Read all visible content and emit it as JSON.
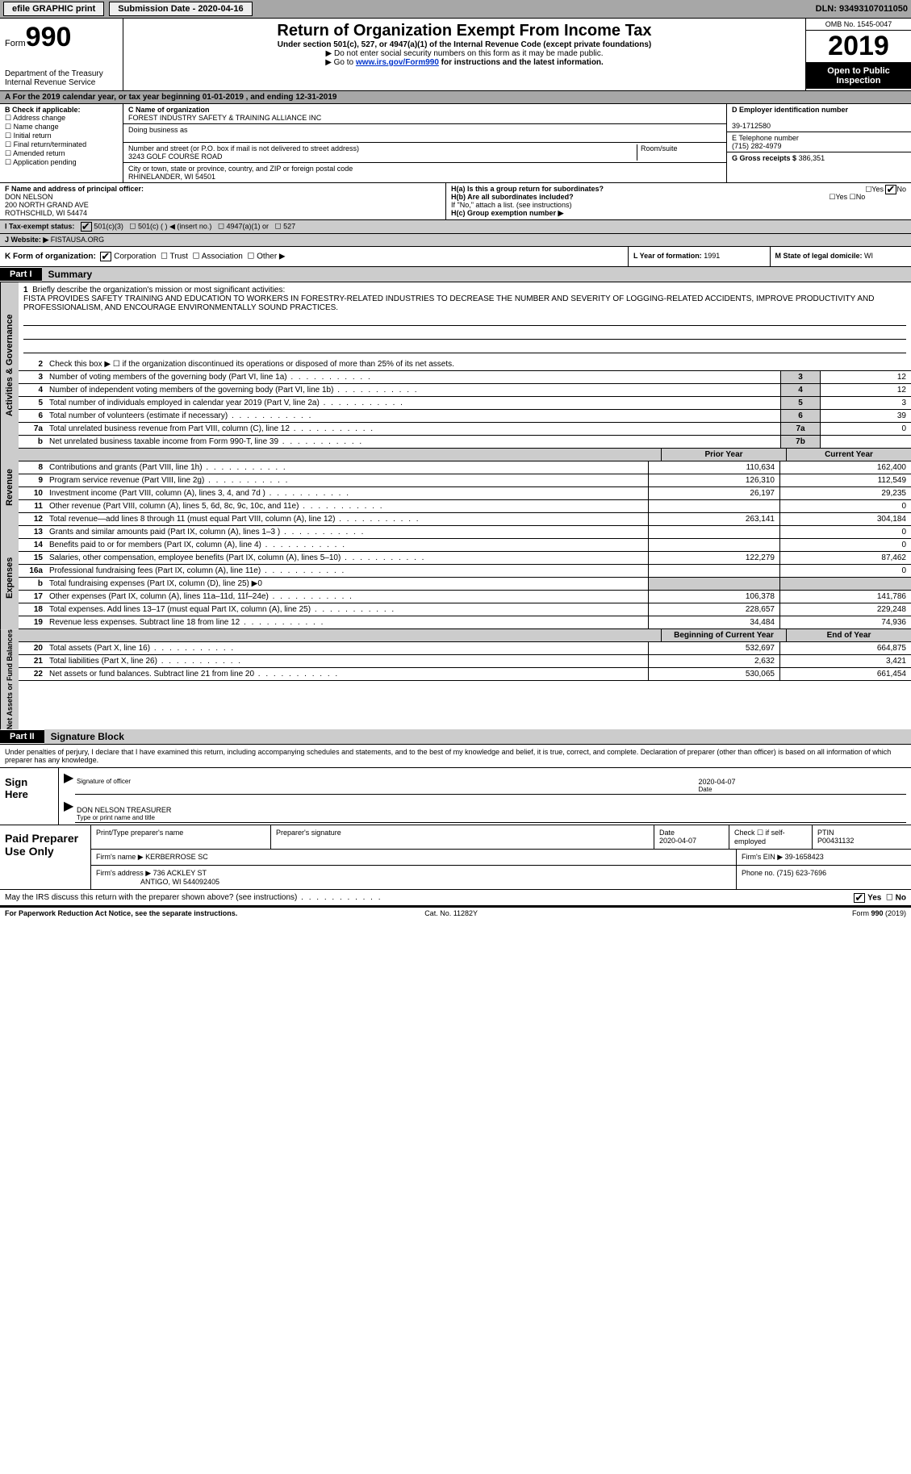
{
  "top": {
    "efile": "efile GRAPHIC print",
    "sub_label": "Submission Date - 2020-04-16",
    "dln": "DLN: 93493107011050"
  },
  "header": {
    "form_word": "Form",
    "form_num": "990",
    "title": "Return of Organization Exempt From Income Tax",
    "subtitle": "Under section 501(c), 527, or 4947(a)(1) of the Internal Revenue Code (except private foundations)",
    "instr1": "▶ Do not enter social security numbers on this form as it may be made public.",
    "instr2_pre": "▶ Go to ",
    "instr2_link": "www.irs.gov/Form990",
    "instr2_post": " for instructions and the latest information.",
    "omb": "OMB No. 1545-0047",
    "year": "2019",
    "open": "Open to Public Inspection",
    "dept": "Department of the Treasury\nInternal Revenue Service"
  },
  "a_line": "A For the 2019 calendar year, or tax year beginning 01-01-2019    , and ending 12-31-2019",
  "b": {
    "hd": "B Check if applicable:",
    "opts": [
      "Address change",
      "Name change",
      "Initial return",
      "Final return/terminated",
      "Amended return",
      "Application pending"
    ]
  },
  "c": {
    "label": "C Name of organization",
    "name": "FOREST INDUSTRY SAFETY & TRAINING ALLIANCE INC",
    "dba_label": "Doing business as",
    "addr_label": "Number and street (or P.O. box if mail is not delivered to street address)",
    "room_label": "Room/suite",
    "addr": "3243 GOLF COURSE ROAD",
    "city_label": "City or town, state or province, country, and ZIP or foreign postal code",
    "city": "RHINELANDER, WI  54501"
  },
  "d": {
    "label": "D Employer identification number",
    "val": "39-1712580"
  },
  "e": {
    "label": "E Telephone number",
    "val": "(715) 282-4979"
  },
  "g": {
    "label": "G Gross receipts $",
    "val": "386,351"
  },
  "f": {
    "label": "F  Name and address of principal officer:",
    "name": "DON NELSON",
    "l1": "200 NORTH GRAND AVE",
    "l2": "ROTHSCHILD, WI  54474"
  },
  "h": {
    "a": "H(a)  Is this a group return for subordinates?",
    "b": "H(b)  Are all subordinates included?",
    "b2": "If \"No,\" attach a list. (see instructions)",
    "c": "H(c)  Group exemption number ▶"
  },
  "i": {
    "label": "I   Tax-exempt status:",
    "o1": "501(c)(3)",
    "o2": "501(c) (  ) ◀ (insert no.)",
    "o3": "4947(a)(1) or",
    "o4": "527"
  },
  "j": {
    "label": "J   Website: ▶",
    "val": "FISTAUSA.ORG"
  },
  "k": {
    "label": "K Form of organization:",
    "o1": "Corporation",
    "o2": "Trust",
    "o3": "Association",
    "o4": "Other ▶"
  },
  "l": {
    "label": "L Year of formation:",
    "val": "1991"
  },
  "m": {
    "label": "M State of legal domicile:",
    "val": "WI"
  },
  "part1": {
    "hd": "Part I",
    "title": "Summary"
  },
  "tabs": {
    "ag": "Activities & Governance",
    "rev": "Revenue",
    "exp": "Expenses",
    "na": "Net Assets or Fund Balances"
  },
  "l1": {
    "n": "1",
    "t": "Briefly describe the organization's mission or most significant activities:",
    "desc": "FISTA PROVIDES SAFETY TRAINING AND EDUCATION TO WORKERS IN FORESTRY-RELATED INDUSTRIES TO DECREASE THE NUMBER AND SEVERITY OF LOGGING-RELATED ACCIDENTS, IMPROVE PRODUCTIVITY AND PROFESSIONALISM, AND ENCOURAGE ENVIRONMENTALLY SOUND PRACTICES."
  },
  "l2": {
    "n": "2",
    "t": "Check this box ▶ ☐  if the organization discontinued its operations or disposed of more than 25% of its net assets."
  },
  "lines_ag": [
    {
      "n": "3",
      "t": "Number of voting members of the governing body (Part VI, line 1a)",
      "c": "3",
      "v": "12"
    },
    {
      "n": "4",
      "t": "Number of independent voting members of the governing body (Part VI, line 1b)",
      "c": "4",
      "v": "12"
    },
    {
      "n": "5",
      "t": "Total number of individuals employed in calendar year 2019 (Part V, line 2a)",
      "c": "5",
      "v": "3"
    },
    {
      "n": "6",
      "t": "Total number of volunteers (estimate if necessary)",
      "c": "6",
      "v": "39"
    },
    {
      "n": "7a",
      "t": "Total unrelated business revenue from Part VIII, column (C), line 12",
      "c": "7a",
      "v": "0"
    },
    {
      "n": "b",
      "t": "Net unrelated business taxable income from Form 990-T, line 39",
      "c": "7b",
      "v": ""
    }
  ],
  "rev_hd": {
    "py": "Prior Year",
    "cy": "Current Year"
  },
  "lines_rev": [
    {
      "n": "8",
      "t": "Contributions and grants (Part VIII, line 1h)",
      "py": "110,634",
      "cy": "162,400"
    },
    {
      "n": "9",
      "t": "Program service revenue (Part VIII, line 2g)",
      "py": "126,310",
      "cy": "112,549"
    },
    {
      "n": "10",
      "t": "Investment income (Part VIII, column (A), lines 3, 4, and 7d )",
      "py": "26,197",
      "cy": "29,235"
    },
    {
      "n": "11",
      "t": "Other revenue (Part VIII, column (A), lines 5, 6d, 8c, 9c, 10c, and 11e)",
      "py": "",
      "cy": "0"
    },
    {
      "n": "12",
      "t": "Total revenue—add lines 8 through 11 (must equal Part VIII, column (A), line 12)",
      "py": "263,141",
      "cy": "304,184"
    }
  ],
  "lines_exp": [
    {
      "n": "13",
      "t": "Grants and similar amounts paid (Part IX, column (A), lines 1–3 )",
      "py": "",
      "cy": "0"
    },
    {
      "n": "14",
      "t": "Benefits paid to or for members (Part IX, column (A), line 4)",
      "py": "",
      "cy": "0"
    },
    {
      "n": "15",
      "t": "Salaries, other compensation, employee benefits (Part IX, column (A), lines 5–10)",
      "py": "122,279",
      "cy": "87,462"
    },
    {
      "n": "16a",
      "t": "Professional fundraising fees (Part IX, column (A), line 11e)",
      "py": "",
      "cy": "0"
    },
    {
      "n": "b",
      "t": "Total fundraising expenses (Part IX, column (D), line 25) ▶0",
      "py": "grey",
      "cy": "grey"
    },
    {
      "n": "17",
      "t": "Other expenses (Part IX, column (A), lines 11a–11d, 11f–24e)",
      "py": "106,378",
      "cy": "141,786"
    },
    {
      "n": "18",
      "t": "Total expenses. Add lines 13–17 (must equal Part IX, column (A), line 25)",
      "py": "228,657",
      "cy": "229,248"
    },
    {
      "n": "19",
      "t": "Revenue less expenses. Subtract line 18 from line 12",
      "py": "34,484",
      "cy": "74,936"
    }
  ],
  "na_hd": {
    "py": "Beginning of Current Year",
    "cy": "End of Year"
  },
  "lines_na": [
    {
      "n": "20",
      "t": "Total assets (Part X, line 16)",
      "py": "532,697",
      "cy": "664,875"
    },
    {
      "n": "21",
      "t": "Total liabilities (Part X, line 26)",
      "py": "2,632",
      "cy": "3,421"
    },
    {
      "n": "22",
      "t": "Net assets or fund balances. Subtract line 21 from line 20",
      "py": "530,065",
      "cy": "661,454"
    }
  ],
  "part2": {
    "hd": "Part II",
    "title": "Signature Block"
  },
  "sig_text": "Under penalties of perjury, I declare that I have examined this return, including accompanying schedules and statements, and to the best of my knowledge and belief, it is true, correct, and complete. Declaration of preparer (other than officer) is based on all information of which preparer has any knowledge.",
  "sign": {
    "here": "Sign Here",
    "sig_label": "Signature of officer",
    "date_label": "Date",
    "date": "2020-04-07",
    "name": "DON NELSON  TREASURER",
    "name_label": "Type or print name and title"
  },
  "paid": {
    "hd": "Paid Preparer Use Only",
    "c1": "Print/Type preparer's name",
    "c2": "Preparer's signature",
    "c3": "Date",
    "c3v": "2020-04-07",
    "c4": "Check ☐ if self-employed",
    "c5": "PTIN",
    "c5v": "P00431132",
    "firm_l": "Firm's name    ▶",
    "firm": "KERBERROSE SC",
    "ein_l": "Firm's EIN ▶",
    "ein": "39-1658423",
    "addr_l": "Firm's address ▶",
    "addr": "736 ACKLEY ST",
    "addr2": "ANTIGO, WI  544092405",
    "ph_l": "Phone no.",
    "ph": "(715) 623-7696"
  },
  "may": "May the IRS discuss this return with the preparer shown above? (see instructions)",
  "foot": {
    "l": "For Paperwork Reduction Act Notice, see the separate instructions.",
    "m": "Cat. No. 11282Y",
    "r": "Form 990 (2019)"
  }
}
